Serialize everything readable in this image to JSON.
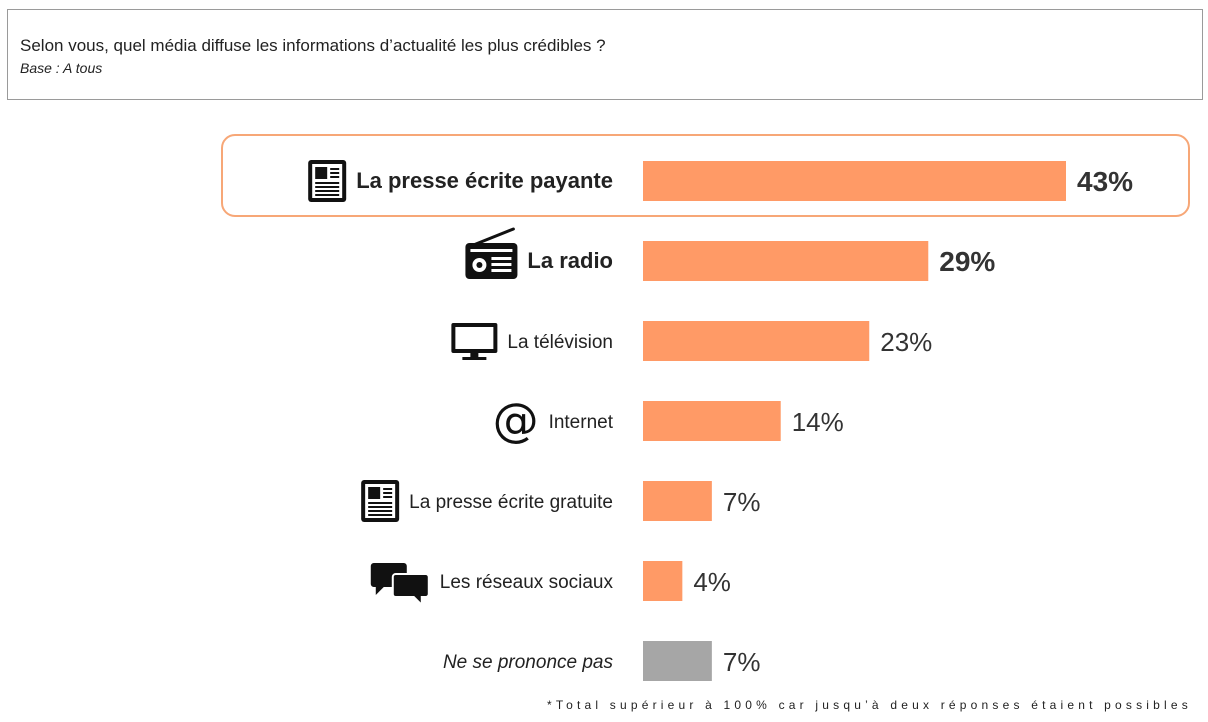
{
  "header": {
    "question": "Selon vous, quel média diffuse les informations d’actualité les plus crédibles ?",
    "base": "Base : A tous"
  },
  "footnote": "*Total supérieur à 100% car jusqu’à deux réponses étaient possibles",
  "colors": {
    "bar": "#ff9a66",
    "bar_na": "#a6a6a6",
    "highlight_border": "#f7a777"
  },
  "chart_data": {
    "type": "bar",
    "orientation": "horizontal",
    "categories": [
      "La presse écrite payante",
      "La radio",
      "La télévision",
      "Internet",
      "La presse écrite gratuite",
      "Les réseaux sociaux",
      "Ne se prononce pas"
    ],
    "values": [
      43,
      29,
      23,
      14,
      7,
      4,
      7
    ],
    "value_labels": [
      "43%",
      "29%",
      "23%",
      "14%",
      "7%",
      "4%",
      "7%"
    ],
    "icons": [
      "newspaper-icon",
      "radio-icon",
      "television-icon",
      "at-sign-icon",
      "newspaper-icon",
      "chat-bubbles-icon",
      ""
    ],
    "emphasis": [
      "bold",
      "bold",
      "normal",
      "normal",
      "normal",
      "normal",
      "italic"
    ],
    "bar_colors": [
      "#ff9a66",
      "#ff9a66",
      "#ff9a66",
      "#ff9a66",
      "#ff9a66",
      "#ff9a66",
      "#a6a6a6"
    ],
    "highlighted_index": 0,
    "xlim": [
      0,
      43
    ],
    "grid": false
  }
}
